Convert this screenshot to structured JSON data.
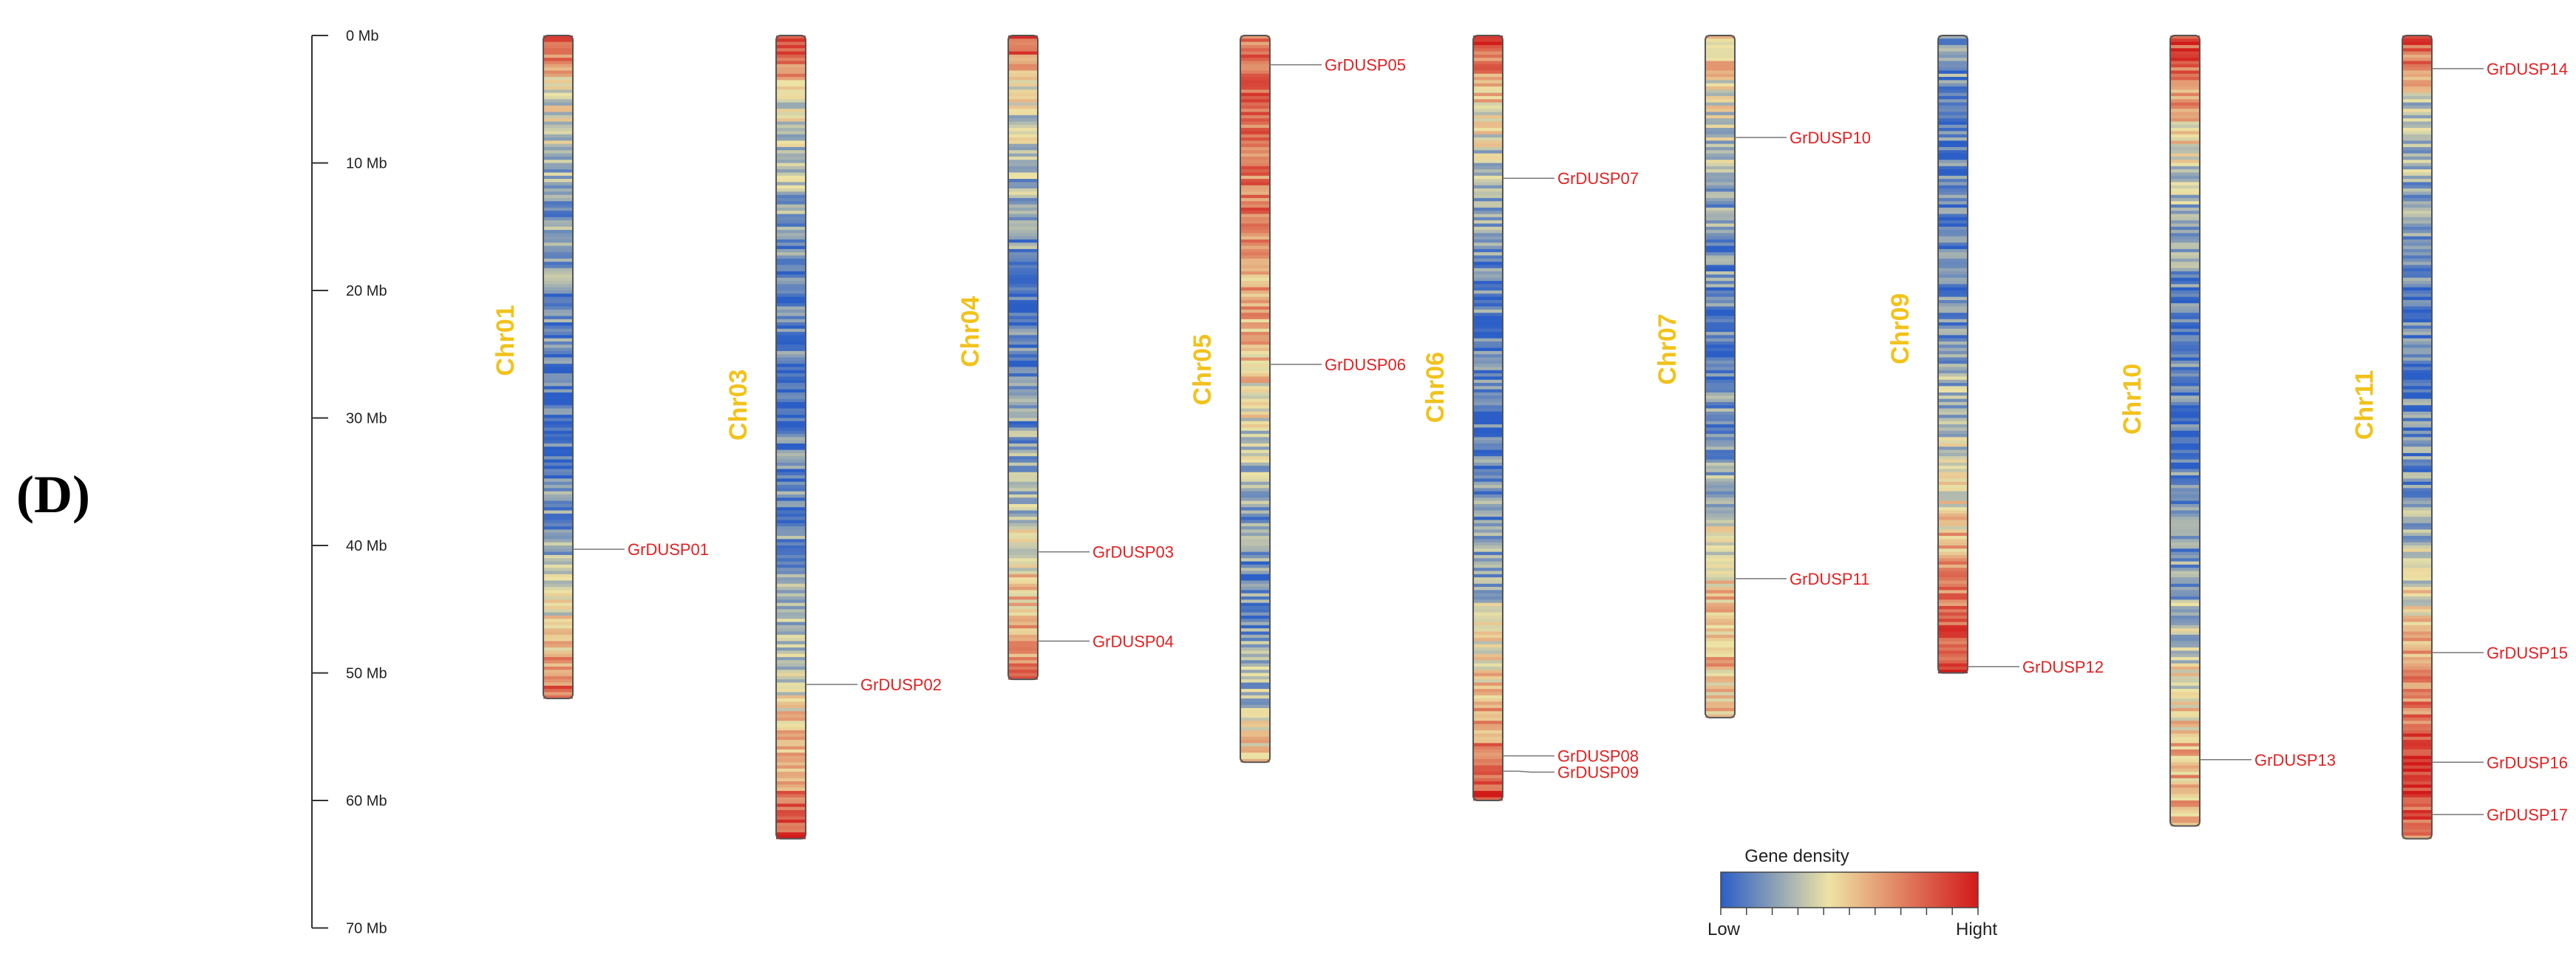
{
  "panel_label": "(D)",
  "colors": {
    "chromosome_label": "#f2c21b",
    "gene_label": "#e32020",
    "density_low": "#2b5fc7",
    "density_mid": "#ede3a4",
    "density_high": "#d21a1a"
  },
  "scale": {
    "unit": "Mb",
    "ticks": [
      {
        "value": 0,
        "label": "0 Mb"
      },
      {
        "value": 10,
        "label": "10 Mb"
      },
      {
        "value": 20,
        "label": "20 Mb"
      },
      {
        "value": 30,
        "label": "30 Mb"
      },
      {
        "value": 40,
        "label": "40 Mb"
      },
      {
        "value": 50,
        "label": "50 Mb"
      },
      {
        "value": 60,
        "label": "60 Mb"
      },
      {
        "value": 70,
        "label": "70 Mb"
      }
    ]
  },
  "chromosomes": [
    {
      "name": "Chr01",
      "length": 52,
      "profile": [
        0.9,
        0.4,
        0.3,
        0.2,
        0.2,
        0.15,
        0.1,
        0.1,
        0.15,
        0.2,
        0.3,
        0.5,
        0.8
      ],
      "genes": [
        {
          "name": "GrDUSP01",
          "pos": 40.3
        }
      ]
    },
    {
      "name": "Chr03",
      "length": 63,
      "profile": [
        0.9,
        0.4,
        0.3,
        0.15,
        0.1,
        0.1,
        0.1,
        0.15,
        0.2,
        0.3,
        0.45,
        0.6,
        0.9
      ],
      "genes": [
        {
          "name": "GrDUSP02",
          "pos": 50.9
        }
      ]
    },
    {
      "name": "Chr04",
      "length": 50.5,
      "profile": [
        0.9,
        0.4,
        0.3,
        0.2,
        0.15,
        0.1,
        0.15,
        0.2,
        0.3,
        0.45,
        0.55,
        0.7
      ],
      "genes": [
        {
          "name": "GrDUSP03",
          "pos": 40.5
        },
        {
          "name": "GrDUSP04",
          "pos": 47.5
        }
      ]
    },
    {
      "name": "Chr05",
      "length": 57,
      "profile": [
        0.75,
        0.8,
        0.7,
        0.75,
        0.6,
        0.55,
        0.45,
        0.3,
        0.2,
        0.15,
        0.2,
        0.3,
        0.55
      ],
      "genes": [
        {
          "name": "GrDUSP05",
          "pos": 2.3
        },
        {
          "name": "GrDUSP06",
          "pos": 25.8
        }
      ]
    },
    {
      "name": "Chr06",
      "length": 60,
      "profile": [
        0.9,
        0.5,
        0.3,
        0.2,
        0.15,
        0.1,
        0.1,
        0.15,
        0.2,
        0.3,
        0.5,
        0.65,
        0.9
      ],
      "genes": [
        {
          "name": "GrDUSP07",
          "pos": 11.2
        },
        {
          "name": "GrDUSP08",
          "pos": 56.5
        },
        {
          "name": "GrDUSP09",
          "pos": 57.7
        }
      ]
    },
    {
      "name": "Chr07",
      "length": 53.5,
      "profile": [
        0.55,
        0.4,
        0.3,
        0.2,
        0.15,
        0.1,
        0.15,
        0.2,
        0.35,
        0.5,
        0.55,
        0.5
      ],
      "genes": [
        {
          "name": "GrDUSP10",
          "pos": 8.0
        },
        {
          "name": "GrDUSP11",
          "pos": 42.6
        }
      ]
    },
    {
      "name": "Chr09",
      "length": 50,
      "profile": [
        0.2,
        0.15,
        0.1,
        0.1,
        0.15,
        0.2,
        0.3,
        0.4,
        0.55,
        0.75,
        0.9
      ],
      "genes": [
        {
          "name": "GrDUSP12",
          "pos": 49.5
        }
      ]
    },
    {
      "name": "Chr10",
      "length": 62,
      "profile": [
        0.9,
        0.6,
        0.35,
        0.2,
        0.15,
        0.1,
        0.1,
        0.15,
        0.2,
        0.3,
        0.45,
        0.55,
        0.6
      ],
      "genes": [
        {
          "name": "GrDUSP13",
          "pos": 56.8
        }
      ]
    },
    {
      "name": "Chr11",
      "length": 63,
      "profile": [
        0.9,
        0.35,
        0.25,
        0.15,
        0.1,
        0.1,
        0.15,
        0.2,
        0.35,
        0.55,
        0.7,
        0.9,
        0.75
      ],
      "genes": [
        {
          "name": "GrDUSP14",
          "pos": 2.6
        },
        {
          "name": "GrDUSP15",
          "pos": 48.4
        },
        {
          "name": "GrDUSP16",
          "pos": 57.0
        },
        {
          "name": "GrDUSP17",
          "pos": 61.1
        }
      ]
    }
  ],
  "legend": {
    "title": "Gene density",
    "low_label": "Low",
    "high_label": "Hight"
  }
}
